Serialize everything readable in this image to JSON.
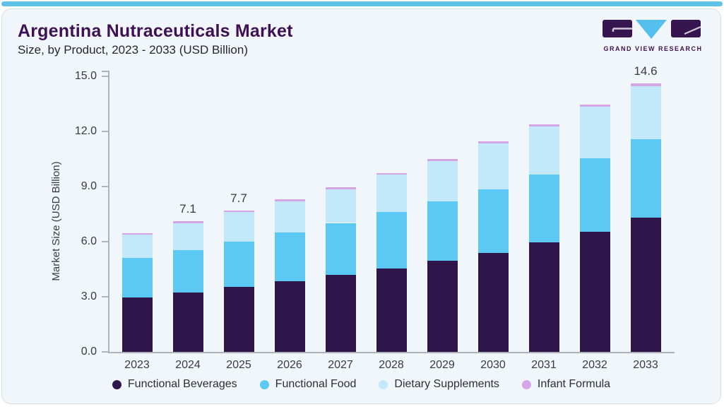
{
  "header": {
    "title": "Argentina Nutraceuticals Market",
    "subtitle": "Size, by Product, 2023 - 2033 (USD Billion)"
  },
  "logo": {
    "brand": "GRAND VIEW RESEARCH"
  },
  "colors": {
    "accent_bar": "#5fc2e9",
    "card_bg": "#f0f6fa",
    "title_text": "#3e1054",
    "axis_line": "#aeb4bc"
  },
  "chart_data": {
    "type": "bar",
    "stacked": true,
    "title": "Argentina Nutraceuticals Market Size, by Product, 2023 - 2033 (USD Billion)",
    "xlabel": "",
    "ylabel": "Market Size (USD Billion)",
    "ylim": [
      0,
      15
    ],
    "yticks": [
      "0.0",
      "3.0",
      "6.0",
      "9.0",
      "12.0",
      "15.0"
    ],
    "grid": false,
    "legend_position": "bottom",
    "categories": [
      "2023",
      "2024",
      "2025",
      "2026",
      "2027",
      "2028",
      "2029",
      "2030",
      "2031",
      "2032",
      "2033"
    ],
    "series": [
      {
        "name": "Functional Beverages",
        "color": "#2e164a",
        "values": [
          2.95,
          3.25,
          3.55,
          3.85,
          4.2,
          4.55,
          4.95,
          5.4,
          5.95,
          6.55,
          7.3
        ]
      },
      {
        "name": "Functional Food",
        "color": "#5bc9f4",
        "values": [
          2.15,
          2.3,
          2.45,
          2.65,
          2.82,
          3.05,
          3.25,
          3.45,
          3.7,
          4.0,
          4.28
        ]
      },
      {
        "name": "Dietary Supplements",
        "color": "#c3e8f9",
        "values": [
          1.3,
          1.45,
          1.6,
          1.7,
          1.83,
          2.05,
          2.2,
          2.5,
          2.62,
          2.78,
          2.88
        ]
      },
      {
        "name": "Infant Formula",
        "color": "#d5a6e7",
        "values": [
          0.08,
          0.1,
          0.1,
          0.1,
          0.1,
          0.1,
          0.1,
          0.11,
          0.11,
          0.12,
          0.14
        ]
      }
    ],
    "totals": [
      6.48,
      7.1,
      7.7,
      8.3,
      8.95,
      9.75,
      10.5,
      11.46,
      12.38,
      13.45,
      14.6
    ],
    "bar_value_labels": [
      {
        "category": "2024",
        "text": "7.1"
      },
      {
        "category": "2025",
        "text": "7.7"
      },
      {
        "category": "2033",
        "text": "14.6"
      }
    ]
  }
}
